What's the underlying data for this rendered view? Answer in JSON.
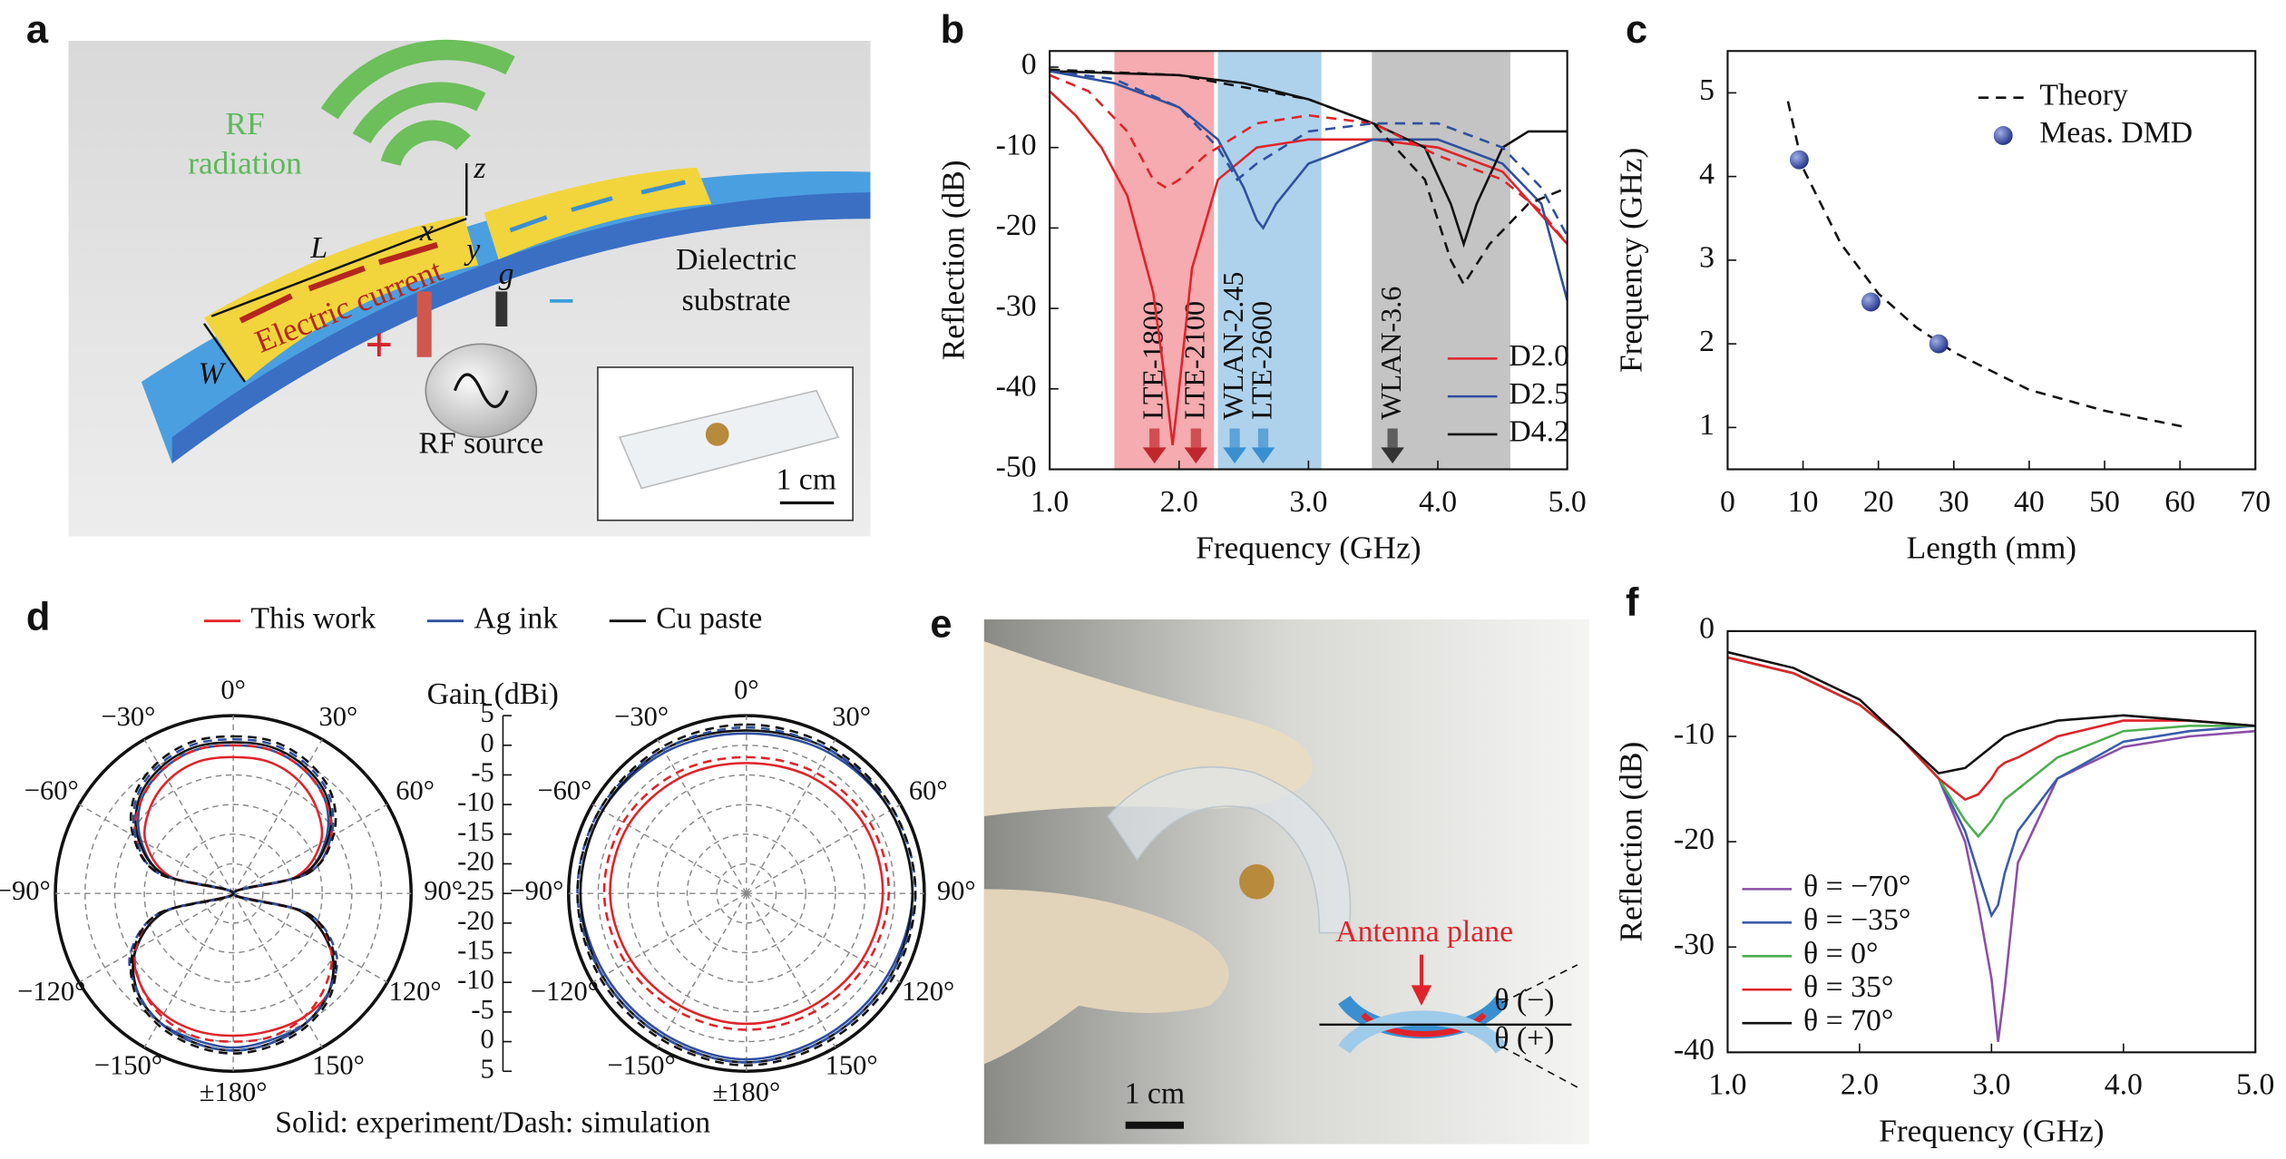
{
  "figure": {
    "panel_a": {
      "letter": "a",
      "rf": "RF",
      "radiation": "radiation",
      "L": "L",
      "x": "x",
      "y": "y",
      "z": "z",
      "g": "g",
      "W": "W",
      "current": "Electric current",
      "dielectric": "Dielectric",
      "substrate": "substrate",
      "plus": "+",
      "minus": "−",
      "source": "RF source",
      "scale": "1 cm"
    },
    "panel_e": {
      "letter": "e",
      "antenna_plane": "Antenna plane",
      "theta_minus": "θ (−)",
      "theta_plus": "θ (+)",
      "scale": "1 cm"
    }
  },
  "chart_data": [
    {
      "type": "line",
      "panel": "b",
      "xlabel": "Frequency (GHz)",
      "ylabel": "Reflection (dB)",
      "xlim": [
        1,
        5
      ],
      "ylim": [
        -50,
        2
      ],
      "xticks": [
        {
          "value": 1,
          "label": "1.0"
        },
        {
          "value": 2,
          "label": "2.0"
        },
        {
          "value": 3,
          "label": "3.0"
        },
        {
          "value": 4,
          "label": "4.0"
        },
        {
          "value": 5,
          "label": "5.0"
        }
      ],
      "yticks": [
        -50,
        -40,
        -30,
        -20,
        -10,
        0
      ],
      "bands": [
        {
          "x0": 1.5,
          "x1": 2.27,
          "color": "#f5abaf"
        },
        {
          "x0": 2.3,
          "x1": 3.1,
          "color": "#aed2ec"
        },
        {
          "x0": 3.49,
          "x1": 4.56,
          "color": "#c4c4c4"
        }
      ],
      "markers": [
        {
          "x": 1.81,
          "label": "LTE-1800",
          "color": "#c0272d"
        },
        {
          "x": 2.13,
          "label": "LTE-2100",
          "color": "#c0272d"
        },
        {
          "x": 2.43,
          "label": "WLAN-2.45",
          "color": "#3a8fd0"
        },
        {
          "x": 2.65,
          "label": "LTE-2600",
          "color": "#3a8fd0"
        },
        {
          "x": 3.65,
          "label": "WLAN-3.6",
          "color": "#333333"
        }
      ],
      "legend": "lower right",
      "series": [
        {
          "name": "D2.0",
          "color": "#e0232a",
          "x": [
            1.0,
            1.2,
            1.4,
            1.6,
            1.8,
            1.9,
            1.95,
            2.0,
            2.1,
            2.3,
            2.6,
            3.0,
            3.5,
            4.0,
            4.5,
            5.0
          ],
          "values": [
            -3,
            -6,
            -10,
            -16,
            -28,
            -40,
            -47,
            -40,
            -25,
            -14,
            -10,
            -9,
            -9,
            -10,
            -13,
            -22
          ]
        },
        {
          "name": "D2.5",
          "color": "#2f4f9e",
          "x": [
            1.0,
            1.5,
            2.0,
            2.3,
            2.5,
            2.6,
            2.65,
            2.75,
            3.0,
            3.5,
            4.0,
            4.5,
            4.8,
            5.0
          ],
          "values": [
            -0.5,
            -2,
            -5,
            -9,
            -15,
            -19,
            -20,
            -17,
            -12,
            -9,
            -9,
            -12,
            -17,
            -29
          ]
        },
        {
          "name": "D4.2",
          "color": "#111111",
          "x": [
            1.0,
            2.0,
            2.5,
            3.0,
            3.5,
            3.9,
            4.1,
            4.2,
            4.3,
            4.5,
            4.7,
            4.9,
            5.0
          ],
          "values": [
            -0.5,
            -1,
            -2,
            -4,
            -7,
            -10,
            -17,
            -22,
            -17,
            -10,
            -8,
            -8,
            -8
          ]
        },
        {
          "color": "#e0232a",
          "dashed": true,
          "x": [
            1.0,
            1.3,
            1.6,
            1.8,
            1.9,
            2.0,
            2.2,
            2.6,
            3.0,
            3.5,
            4.0,
            4.5,
            4.8,
            5.0
          ],
          "values": [
            -1,
            -3,
            -8,
            -14,
            -15,
            -14,
            -11,
            -7,
            -6,
            -7,
            -11,
            -14,
            -18,
            -22
          ]
        },
        {
          "color": "#2f4f9e",
          "dashed": true,
          "x": [
            1.0,
            1.5,
            2.0,
            2.3,
            2.45,
            2.6,
            3.0,
            3.5,
            4.0,
            4.5,
            4.8,
            5.0
          ],
          "values": [
            -0.5,
            -1.5,
            -5,
            -10,
            -14,
            -12,
            -8,
            -7,
            -7,
            -10,
            -15,
            -21
          ]
        },
        {
          "color": "#111111",
          "dashed": true,
          "x": [
            1.0,
            2.0,
            3.0,
            3.5,
            3.9,
            4.1,
            4.2,
            4.4,
            4.7,
            5.0
          ],
          "values": [
            -0.3,
            -1,
            -4,
            -7,
            -14,
            -24,
            -27,
            -22,
            -17,
            -15
          ]
        }
      ]
    },
    {
      "type": "scatter",
      "panel": "c",
      "xlabel": "Length (mm)",
      "ylabel": "Frequency (GHz)",
      "xlim": [
        0,
        70
      ],
      "ylim": [
        0.5,
        5.5
      ],
      "xticks": [
        0,
        10,
        20,
        30,
        40,
        50,
        60,
        70
      ],
      "yticks": [
        1,
        2,
        3,
        4,
        5
      ],
      "legend": "upper right",
      "series": [
        {
          "name": "Theory",
          "color": "#111111",
          "dashed": true,
          "x": [
            8,
            10,
            15,
            20,
            25,
            30,
            40,
            50,
            61
          ],
          "values": [
            4.9,
            4.1,
            3.2,
            2.6,
            2.2,
            1.9,
            1.45,
            1.2,
            1.0
          ]
        },
        {
          "name": "Meas. DMD",
          "color": "#2b3d98",
          "mode": "markers",
          "x": [
            9.5,
            19,
            28
          ],
          "values": [
            4.2,
            2.5,
            2.0
          ]
        }
      ]
    },
    {
      "type": "polar",
      "panel": "d",
      "title": "Gain (dBi)",
      "caption": "Solid: experiment/Dash: simulation",
      "rlim": [
        -25,
        5
      ],
      "rticks": [
        5,
        0,
        -5,
        -10,
        -15,
        -20,
        -25
      ],
      "thetaticks": [
        {
          "value": 0,
          "label": "0°"
        },
        {
          "value": 30,
          "label": "30°"
        },
        {
          "value": 60,
          "label": "60°"
        },
        {
          "value": 90,
          "label": "90°"
        },
        {
          "value": 120,
          "label": "120°"
        },
        {
          "value": 150,
          "label": "150°"
        },
        {
          "value": 180,
          "label": "±180°"
        },
        {
          "value": -150,
          "label": "−150°"
        },
        {
          "value": -120,
          "label": "−120°"
        },
        {
          "value": -90,
          "label": "−90°"
        },
        {
          "value": -60,
          "label": "−60°"
        },
        {
          "value": -30,
          "label": "−30°"
        }
      ],
      "series": [
        {
          "name": "This work",
          "color": "#e0232a"
        },
        {
          "name": "Ag ink",
          "color": "#2f4f9e"
        },
        {
          "name": "Cu paste",
          "color": "#111111"
        }
      ],
      "plots": [
        {
          "theta": [
            0,
            15,
            30,
            45,
            60,
            75,
            90,
            105,
            120,
            135,
            150,
            165,
            180,
            195,
            210,
            225,
            240,
            255,
            270,
            285,
            300,
            315,
            330,
            345
          ],
          "experiment": [
            [
              -2,
              -2,
              -3,
              -5,
              -8,
              -14,
              -25,
              -13,
              -6,
              -2,
              -1,
              -1,
              -1,
              -1,
              -1.5,
              -3,
              -6,
              -13,
              -25,
              -14,
              -8,
              -5,
              -3,
              -2
            ],
            [
              0,
              0,
              -1,
              -3,
              -7,
              -13,
              -25,
              -13,
              -6,
              -2,
              0,
              0.5,
              1,
              0.5,
              0,
              -2,
              -6,
              -13,
              -25,
              -13,
              -7,
              -3,
              -1,
              0
            ],
            [
              0.5,
              0.5,
              -0.5,
              -2.5,
              -6.5,
              -13,
              -25,
              -13,
              -6,
              -2,
              0,
              1,
              1.5,
              1,
              0,
              -2,
              -6,
              -13,
              -25,
              -13,
              -6.5,
              -2.5,
              -0.5,
              0.5
            ]
          ],
          "simulation": [
            [
              0,
              0,
              -1,
              -3,
              -6,
              -12,
              -25,
              -12,
              -6,
              -3,
              -1,
              0,
              0,
              0,
              -1,
              -3,
              -6,
              -12,
              -25,
              -12,
              -6,
              -3,
              -1,
              0
            ],
            [
              1,
              1,
              0,
              -2,
              -6,
              -12,
              -25,
              -12,
              -5,
              -2,
              0,
              1,
              1.5,
              1,
              0,
              -2,
              -5,
              -12,
              -25,
              -12,
              -6,
              -2,
              0,
              1
            ],
            [
              1.5,
              1.5,
              0.5,
              -1.5,
              -5.5,
              -12,
              -25,
              -12,
              -5.5,
              -1.5,
              0.5,
              1.5,
              2,
              1.5,
              0.5,
              -1.5,
              -5.5,
              -12,
              -25,
              -12,
              -5.5,
              -1.5,
              0.5,
              1.5
            ]
          ]
        },
        {
          "theta": [
            0,
            30,
            60,
            90,
            120,
            150,
            180,
            210,
            240,
            270,
            300,
            330
          ],
          "experiment": [
            [
              -3,
              -2.5,
              -2,
              -2,
              -2.5,
              -3,
              -3,
              -3,
              -2.5,
              -2,
              -2,
              -2.5
            ],
            [
              2,
              2.5,
              3,
              3,
              2.5,
              2.5,
              3,
              2.5,
              2.5,
              3,
              3,
              2.5
            ],
            [
              2.5,
              3,
              3,
              3,
              3,
              3,
              3.5,
              3,
              3,
              3,
              3,
              3
            ]
          ],
          "simulation": [
            [
              -2,
              -1.5,
              -1,
              -1,
              -1.5,
              -2,
              -2,
              -2,
              -1.5,
              -1,
              -1,
              -1.5
            ],
            [
              3,
              3,
              3.5,
              3.5,
              3,
              3,
              3.5,
              3,
              3,
              3.5,
              3.5,
              3
            ],
            [
              3.5,
              3.5,
              3.5,
              3.5,
              3.5,
              3.5,
              4,
              3.5,
              3.5,
              3.5,
              3.5,
              3.5
            ]
          ]
        }
      ]
    },
    {
      "type": "line",
      "panel": "f",
      "xlabel": "Frequency (GHz)",
      "ylabel": "Reflection (dB)",
      "xlim": [
        1,
        5
      ],
      "ylim": [
        -40,
        0
      ],
      "xticks": [
        {
          "value": 1,
          "label": "1.0"
        },
        {
          "value": 2,
          "label": "2.0"
        },
        {
          "value": 3,
          "label": "3.0"
        },
        {
          "value": 4,
          "label": "4.0"
        },
        {
          "value": 5,
          "label": "5.0"
        }
      ],
      "yticks": [
        -40,
        -30,
        -20,
        -10,
        0
      ],
      "legend": "lower left",
      "series": [
        {
          "name": "θ = −70°",
          "color": "#8b4fa8",
          "x": [
            1.0,
            1.5,
            2.0,
            2.3,
            2.6,
            2.8,
            2.9,
            3.0,
            3.05,
            3.1,
            3.2,
            3.5,
            4.0,
            4.5,
            5.0
          ],
          "values": [
            -2.5,
            -4,
            -7,
            -10,
            -14,
            -20,
            -26,
            -33,
            -39,
            -34,
            -22,
            -14,
            -11,
            -10,
            -9.5
          ]
        },
        {
          "name": "θ = −35°",
          "color": "#3b5bab",
          "x": [
            1.0,
            1.5,
            2.0,
            2.3,
            2.6,
            2.8,
            2.9,
            3.0,
            3.05,
            3.1,
            3.2,
            3.5,
            4.0,
            4.5,
            5.0
          ],
          "values": [
            -2.5,
            -4,
            -7,
            -10,
            -14,
            -19,
            -23,
            -27,
            -26,
            -23,
            -19,
            -14,
            -10.5,
            -9.5,
            -9
          ]
        },
        {
          "name": "θ = 0°",
          "color": "#4cae4c",
          "x": [
            1.0,
            1.5,
            2.0,
            2.3,
            2.6,
            2.8,
            2.9,
            3.0,
            3.05,
            3.1,
            3.2,
            3.5,
            4.0,
            4.5,
            5.0
          ],
          "values": [
            -2.5,
            -4,
            -7,
            -10,
            -14,
            -18,
            -19.5,
            -18,
            -17,
            -16,
            -15,
            -12,
            -9.5,
            -9,
            -9
          ]
        },
        {
          "name": "θ = 35°",
          "color": "#e0232a",
          "x": [
            1.0,
            1.5,
            2.0,
            2.3,
            2.6,
            2.8,
            2.9,
            3.0,
            3.05,
            3.1,
            3.2,
            3.5,
            4.0,
            4.5,
            5.0
          ],
          "values": [
            -2.5,
            -4,
            -7,
            -10,
            -14,
            -16,
            -15.5,
            -14,
            -13,
            -12.5,
            -12,
            -10,
            -8.5,
            -8.5,
            -9
          ]
        },
        {
          "name": "θ = 70°",
          "color": "#111111",
          "x": [
            1.0,
            1.5,
            2.0,
            2.3,
            2.6,
            2.8,
            2.9,
            3.0,
            3.05,
            3.1,
            3.2,
            3.5,
            4.0,
            4.5,
            5.0
          ],
          "values": [
            -2,
            -3.5,
            -6.5,
            -10,
            -13.5,
            -13,
            -12,
            -11,
            -10.5,
            -10,
            -9.5,
            -8.5,
            -8,
            -8.5,
            -9
          ]
        }
      ]
    }
  ]
}
